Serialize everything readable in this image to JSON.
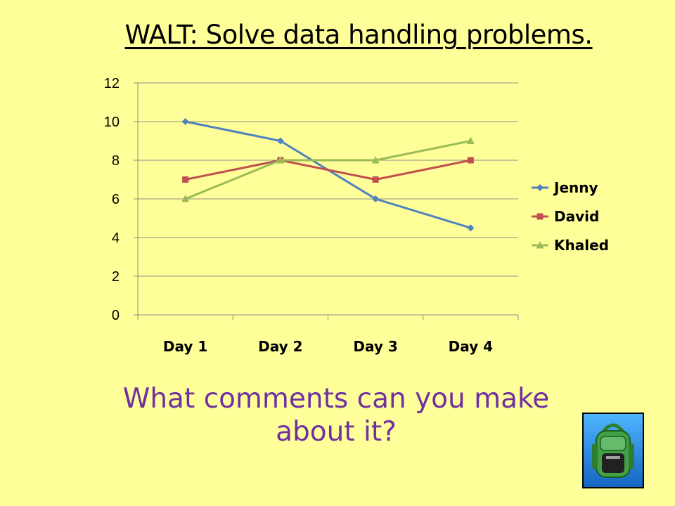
{
  "slide": {
    "title": "WALT: Solve data handling problems.",
    "question": "What comments can you make about it?",
    "background_color": "#FFFF99",
    "question_color": "#7030A0",
    "icon": "backpack-icon"
  },
  "chart_data": {
    "type": "line",
    "categories": [
      "Day 1",
      "Day 2",
      "Day 3",
      "Day 4"
    ],
    "series": [
      {
        "name": "Jenny",
        "values": [
          10,
          9,
          6,
          4.5
        ],
        "color": "#4F81BD",
        "marker": "diamond"
      },
      {
        "name": "David",
        "values": [
          7,
          8,
          7,
          8
        ],
        "color": "#C0504D",
        "marker": "square"
      },
      {
        "name": "Khaled",
        "values": [
          6,
          8,
          8,
          9
        ],
        "color": "#9BBB59",
        "marker": "triangle"
      }
    ],
    "yticks": [
      0,
      2,
      4,
      6,
      8,
      10,
      12
    ],
    "ylim": [
      0,
      12
    ],
    "grid": true,
    "legend": "right"
  }
}
